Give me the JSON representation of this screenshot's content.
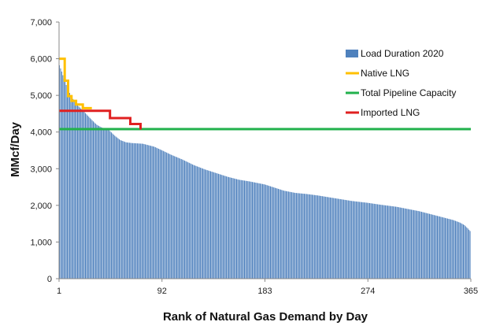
{
  "chart_data": {
    "type": "bar",
    "xlabel": "Rank of Natural Gas Demand by Day",
    "ylabel": "MMcf/Day",
    "ylim": [
      0,
      7000
    ],
    "yticks": [
      "0",
      "1,000",
      "2,000",
      "3,000",
      "4,000",
      "5,000",
      "6,000",
      "7,000"
    ],
    "xlim": [
      1,
      365
    ],
    "xticks": [
      "1",
      "92",
      "183",
      "274",
      "365"
    ],
    "grid": false,
    "legend_position": "top-right",
    "load_curve": {
      "name": "Load Duration 2020",
      "color": "#4f81bd",
      "points": [
        [
          1,
          5820
        ],
        [
          3,
          5650
        ],
        [
          5,
          5450
        ],
        [
          8,
          5200
        ],
        [
          11,
          5000
        ],
        [
          14,
          4850
        ],
        [
          18,
          4700
        ],
        [
          22,
          4580
        ],
        [
          26,
          4450
        ],
        [
          30,
          4320
        ],
        [
          34,
          4200
        ],
        [
          38,
          4130
        ],
        [
          45,
          4050
        ],
        [
          50,
          3900
        ],
        [
          55,
          3780
        ],
        [
          60,
          3720
        ],
        [
          65,
          3700
        ],
        [
          75,
          3680
        ],
        [
          85,
          3600
        ],
        [
          92,
          3500
        ],
        [
          100,
          3380
        ],
        [
          110,
          3250
        ],
        [
          120,
          3100
        ],
        [
          130,
          2980
        ],
        [
          140,
          2880
        ],
        [
          150,
          2780
        ],
        [
          160,
          2700
        ],
        [
          170,
          2650
        ],
        [
          183,
          2570
        ],
        [
          190,
          2500
        ],
        [
          200,
          2400
        ],
        [
          210,
          2340
        ],
        [
          220,
          2310
        ],
        [
          230,
          2270
        ],
        [
          240,
          2220
        ],
        [
          250,
          2170
        ],
        [
          260,
          2120
        ],
        [
          274,
          2070
        ],
        [
          285,
          2020
        ],
        [
          300,
          1960
        ],
        [
          310,
          1900
        ],
        [
          320,
          1840
        ],
        [
          330,
          1760
        ],
        [
          340,
          1680
        ],
        [
          350,
          1600
        ],
        [
          356,
          1530
        ],
        [
          360,
          1460
        ],
        [
          363,
          1370
        ],
        [
          365,
          1300
        ]
      ]
    },
    "series": [
      {
        "name": "Native LNG",
        "color": "#ffc000",
        "points": [
          [
            1,
            6000
          ],
          [
            6,
            6000
          ],
          [
            6,
            5400
          ],
          [
            9,
            5400
          ],
          [
            9,
            4980
          ],
          [
            12,
            4980
          ],
          [
            12,
            4850
          ],
          [
            16,
            4850
          ],
          [
            16,
            4750
          ],
          [
            22,
            4750
          ],
          [
            22,
            4650
          ],
          [
            30,
            4650
          ]
        ]
      },
      {
        "name": "Total Pipeline Capacity",
        "color": "#22b14c",
        "points": [
          [
            1,
            4080
          ],
          [
            365,
            4080
          ]
        ]
      },
      {
        "name": "Imported LNG",
        "color": "#e02020",
        "points": [
          [
            1,
            4580
          ],
          [
            46,
            4580
          ],
          [
            46,
            4380
          ],
          [
            64,
            4380
          ],
          [
            64,
            4220
          ],
          [
            73,
            4220
          ],
          [
            73,
            4070
          ]
        ]
      }
    ]
  }
}
